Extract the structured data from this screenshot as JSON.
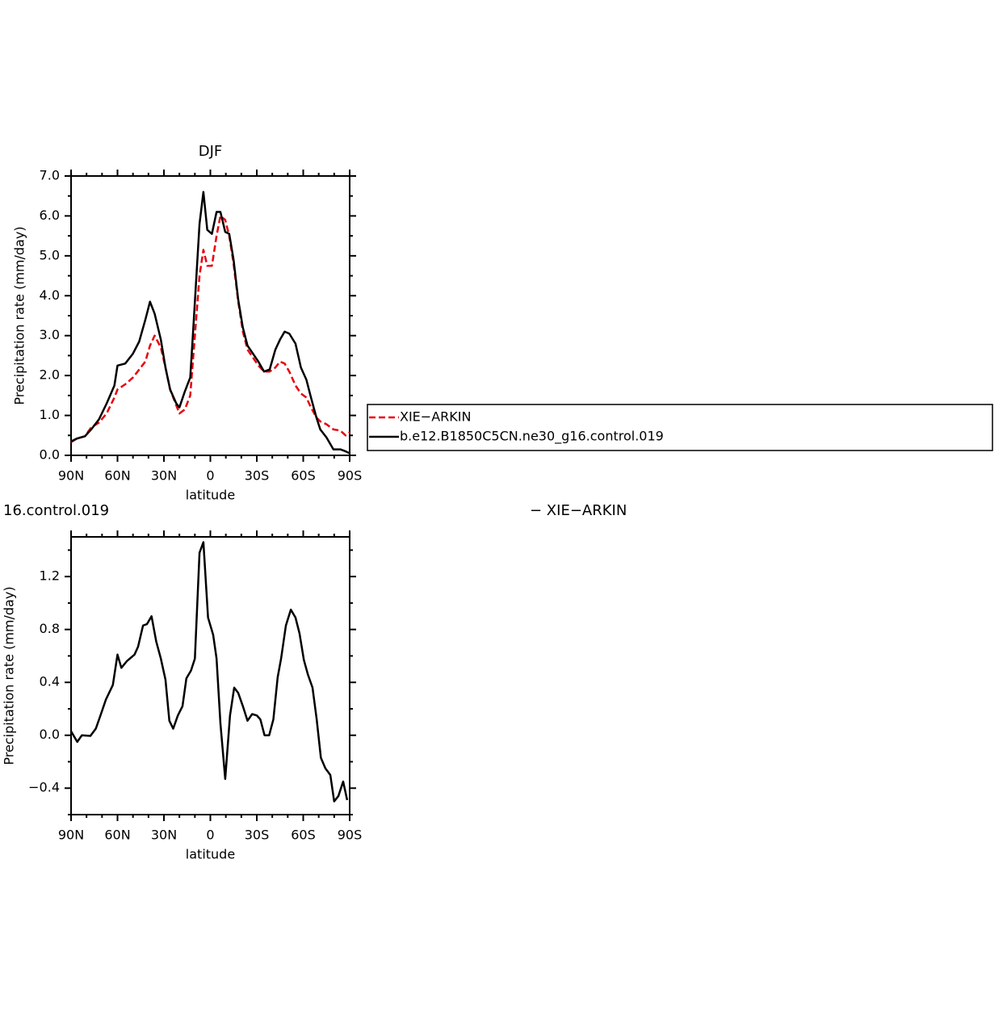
{
  "chart_data": [
    {
      "type": "line",
      "title": "DJF",
      "xlabel": "latitude",
      "ylabel": "Precipitation rate (mm/day)",
      "xlim": [
        90,
        -90
      ],
      "ylim": [
        0,
        7
      ],
      "xticks": [
        {
          "value": 90,
          "label": "90N"
        },
        {
          "value": 60,
          "label": "60N"
        },
        {
          "value": 30,
          "label": "30N"
        },
        0,
        {
          "value": -30,
          "label": "30S"
        },
        {
          "value": -60,
          "label": "60S"
        },
        {
          "value": -90,
          "label": "90S"
        }
      ],
      "xminor_ticks": [
        80,
        70,
        50,
        40,
        20,
        10,
        -10,
        -20,
        -40,
        -50,
        -70,
        -80
      ],
      "yticks": [
        {
          "value": 0,
          "label": "0.0"
        },
        {
          "value": 1,
          "label": "1.0"
        },
        {
          "value": 2,
          "label": "2.0"
        },
        {
          "value": 3,
          "label": "3.0"
        },
        {
          "value": 4,
          "label": "4.0"
        },
        {
          "value": 5,
          "label": "5.0"
        },
        {
          "value": 6,
          "label": "6.0"
        },
        {
          "value": 7,
          "label": "7.0"
        }
      ],
      "yminor_ticks": [
        0.5,
        1.5,
        2.5,
        3.5,
        4.5,
        5.5,
        6.5
      ],
      "x": [
        90,
        86.3,
        81,
        77,
        72,
        67,
        62,
        60,
        55,
        50,
        46,
        42,
        39,
        36,
        32,
        29,
        26,
        22,
        20,
        16.5,
        13,
        11,
        7,
        4.5,
        2,
        -1,
        -4,
        -6.5,
        -9.6,
        -12.2,
        -15,
        -18,
        -21,
        -24,
        -27.5,
        -31,
        -34.7,
        -38.3,
        -42,
        -45,
        -48,
        -51,
        -55,
        -58.5,
        -62,
        -65,
        -68.5,
        -71,
        -75,
        -79.5,
        -84,
        -87.4,
        -90
      ],
      "series": [
        {
          "name": "XIE−ARKIN",
          "color": "#e8000b",
          "line_style": "dashed",
          "values": [
            0.33,
            0.42,
            0.48,
            0.7,
            0.82,
            1.05,
            1.45,
            1.65,
            1.78,
            1.95,
            2.15,
            2.35,
            2.75,
            3.0,
            2.7,
            2.2,
            1.65,
            1.25,
            1.05,
            1.15,
            1.5,
            2.5,
            4.5,
            5.15,
            4.75,
            4.75,
            5.5,
            6.0,
            5.9,
            5.5,
            4.8,
            3.85,
            3.1,
            2.65,
            2.45,
            2.25,
            2.1,
            2.1,
            2.2,
            2.35,
            2.3,
            2.1,
            1.75,
            1.55,
            1.45,
            1.2,
            0.95,
            0.85,
            0.78,
            0.65,
            0.62,
            0.5,
            0.58
          ]
        },
        {
          "name": "b.e12.B1850C5CN.ne30_g16.control.019",
          "color": "#000000",
          "line_style": "solid",
          "values": [
            0.35,
            0.42,
            0.48,
            0.65,
            0.9,
            1.3,
            1.75,
            2.25,
            2.3,
            2.55,
            2.85,
            3.4,
            3.85,
            3.55,
            2.9,
            2.2,
            1.65,
            1.3,
            1.2,
            1.6,
            1.95,
            3.2,
            5.8,
            6.6,
            5.65,
            5.55,
            6.1,
            6.1,
            5.6,
            5.55,
            4.9,
            3.9,
            3.2,
            2.75,
            2.55,
            2.35,
            2.1,
            2.15,
            2.65,
            2.9,
            3.1,
            3.05,
            2.8,
            2.2,
            1.9,
            1.45,
            0.95,
            0.65,
            0.45,
            0.15,
            0.15,
            0.1,
            0.05
          ]
        }
      ]
    },
    {
      "type": "line",
      "title_left": "16.control.019",
      "title_right": "− XIE−ARKIN",
      "xlabel": "latitude",
      "ylabel": "Precipitation rate (mm/day)",
      "xlim": [
        90,
        -90
      ],
      "ylim": [
        -0.6,
        1.5
      ],
      "xticks": [
        {
          "value": 90,
          "label": "90N"
        },
        {
          "value": 60,
          "label": "60N"
        },
        {
          "value": 30,
          "label": "30N"
        },
        0,
        {
          "value": -30,
          "label": "30S"
        },
        {
          "value": -60,
          "label": "60S"
        },
        {
          "value": -90,
          "label": "90S"
        }
      ],
      "xminor_ticks": [
        80,
        70,
        50,
        40,
        20,
        10,
        -10,
        -20,
        -40,
        -50,
        -70,
        -80
      ],
      "yticks": [
        {
          "value": -0.4,
          "label": "−0.4"
        },
        {
          "value": 0,
          "label": "0.0"
        },
        0.4,
        0.8,
        1.2
      ],
      "yminor_ticks": [
        -0.6,
        -0.2,
        0.2,
        0.6,
        1.0,
        1.4
      ],
      "color": "#000000",
      "x": [
        90,
        86,
        83,
        77.5,
        74,
        71,
        67.5,
        63,
        60,
        57.5,
        54,
        49,
        46.7,
        43.5,
        41,
        38,
        35,
        32,
        29,
        26.5,
        24,
        21,
        18,
        15.5,
        12.5,
        10,
        7,
        4.5,
        1.5,
        -1.8,
        -4,
        -6.5,
        -9.6,
        -12.7,
        -15.4,
        -18,
        -21,
        -24,
        -27,
        -30,
        -32.3,
        -35,
        -38,
        -40.7,
        -43.5,
        -45.7,
        -48.8,
        -52,
        -55,
        -57.6,
        -60.4,
        -63,
        -66,
        -68.7,
        -71.4,
        -74.3,
        -77.5,
        -80,
        -82.7,
        -85.8,
        -88.4
      ],
      "values": [
        0.03,
        -0.05,
        0.0,
        -0.005,
        0.05,
        0.15,
        0.27,
        0.38,
        0.61,
        0.51,
        0.56,
        0.61,
        0.67,
        0.83,
        0.84,
        0.9,
        0.71,
        0.58,
        0.42,
        0.11,
        0.05,
        0.15,
        0.22,
        0.43,
        0.49,
        0.58,
        1.38,
        1.46,
        0.89,
        0.76,
        0.58,
        0.09,
        -0.33,
        0.15,
        0.36,
        0.32,
        0.22,
        0.11,
        0.16,
        0.15,
        0.12,
        0.0,
        0.0,
        0.12,
        0.44,
        0.58,
        0.83,
        0.95,
        0.89,
        0.77,
        0.57,
        0.46,
        0.36,
        0.12,
        -0.17,
        -0.25,
        -0.3,
        -0.5,
        -0.46,
        -0.35,
        -0.49
      ]
    }
  ]
}
